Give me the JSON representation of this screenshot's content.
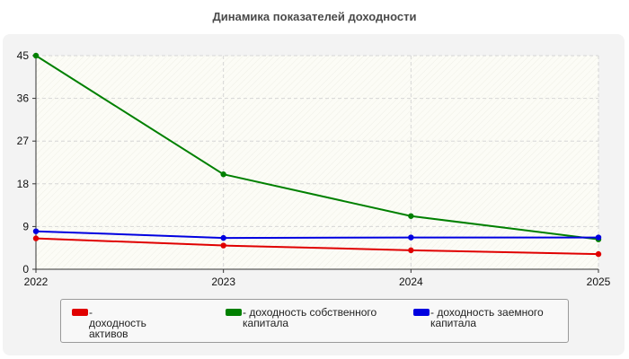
{
  "chart_data": {
    "type": "line",
    "title": "Динамика показателей доходности",
    "xlabel": "",
    "ylabel": "",
    "x": [
      "2022",
      "2023",
      "2024",
      "2025"
    ],
    "ylim": [
      0,
      45
    ],
    "yticks": [
      "0",
      "9",
      "18",
      "27",
      "36",
      "45"
    ],
    "grid": true,
    "legend_position": "bottom",
    "series": [
      {
        "name": "- доходность активов",
        "color": "#e00000",
        "values": [
          6.5,
          5.0,
          4.0,
          3.2
        ]
      },
      {
        "name": "- доходность собственного капитала",
        "color": "#008000",
        "values": [
          45.0,
          20.0,
          11.2,
          6.3
        ]
      },
      {
        "name": "- доходность заемного капитала",
        "color": "#0000e0",
        "values": [
          8.0,
          6.6,
          6.7,
          6.7
        ]
      }
    ]
  }
}
